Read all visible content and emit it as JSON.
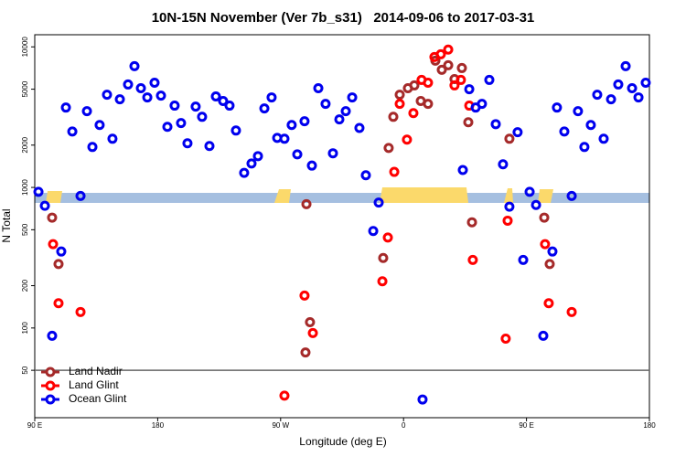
{
  "chart_data": {
    "type": "scatter",
    "title": "10N-15N November (Ver 7b_s31)   2014-09-06 to 2017-03-31",
    "x_label": "Longitude (deg E)",
    "y_label": "N Total",
    "xlim": [
      90,
      540
    ],
    "xticks": [
      {
        "value": 90,
        "label": "90 E"
      },
      180,
      {
        "value": 270,
        "label": "90 W"
      },
      {
        "value": 360,
        "label": "0"
      },
      {
        "value": 450,
        "label": "90 E"
      },
      {
        "value": 540,
        "label": "180"
      }
    ],
    "ylim": [
      23,
      12200
    ],
    "y_log": true,
    "yticks": [
      50,
      100,
      200,
      500,
      1000,
      2000,
      5000,
      10000
    ],
    "legend": "lower left",
    "series": [
      {
        "name": "Land Nadir",
        "color": "#a52a2a",
        "x": [
          102.7,
          107.4,
          288.2,
          291.5,
          288.9,
          345.1,
          349.1,
          352.5,
          357.2,
          363.2,
          367.9,
          372.6,
          377.9,
          383.3,
          388,
          392.7,
          397.3,
          402.7,
          407.4,
          410.1,
          437.5,
          463,
          467
        ],
        "values": [
          610,
          285,
          67,
          110,
          760,
          315,
          1910,
          3180,
          4570,
          5080,
          5320,
          4120,
          3930,
          7980,
          6870,
          7400,
          5900,
          7070,
          2910,
          565,
          2220,
          610,
          285
        ]
      },
      {
        "name": "Land Glint",
        "color": "#ff0000",
        "x": [
          103.4,
          107.4,
          123.5,
          272.8,
          287.5,
          293.6,
          348.5,
          344.5,
          353.2,
          357.2,
          362.5,
          367.2,
          373.2,
          377.9,
          382.6,
          387.3,
          392.7,
          397.3,
          402,
          408.1,
          410.7,
          436.2,
          434.8,
          463.6,
          466.3,
          483.1
        ],
        "values": [
          395,
          150,
          130,
          33,
          170,
          92,
          440,
          215,
          1290,
          3930,
          2190,
          3380,
          5820,
          5560,
          8470,
          8860,
          9560,
          5320,
          5820,
          3820,
          305,
          580,
          84,
          395,
          150,
          130
        ]
      },
      {
        "name": "Ocean Glint",
        "color": "#0000ee",
        "x": [
          92.7,
          97.4,
          102.7,
          109.4,
          112.8,
          117.5,
          123.5,
          128.2,
          132.2,
          137.5,
          142.9,
          146.9,
          152.3,
          158.3,
          163,
          167.7,
          172.4,
          177.7,
          182.4,
          187.1,
          192.4,
          197.1,
          201.8,
          207.8,
          212.5,
          217.9,
          222.6,
          227.9,
          232.6,
          237.3,
          243.3,
          248.7,
          253.4,
          258.1,
          263.4,
          267.5,
          272.8,
          278.1,
          282.2,
          287.5,
          292.9,
          297.6,
          302.9,
          308.3,
          313,
          317.7,
          322.4,
          327.7,
          332.4,
          337.8,
          341.8,
          373.9,
          403.4,
          408.1,
          412.8,
          417.4,
          422.8,
          427.5,
          432.8,
          437.5,
          443.5,
          447.6,
          452.3,
          457,
          462.3,
          469,
          472.3,
          477.7,
          483.1,
          487.7,
          492.4,
          497.1,
          501.8,
          506.5,
          511.9,
          517.2,
          522.6,
          527.3,
          532,
          537.3
        ],
        "values": [
          930,
          740,
          88,
          350,
          3700,
          2500,
          870,
          3490,
          1940,
          2780,
          4570,
          2220,
          4240,
          5400,
          7290,
          5080,
          4370,
          5560,
          4500,
          2700,
          3820,
          2870,
          2060,
          3760,
          3180,
          1970,
          4440,
          4120,
          3820,
          2540,
          1270,
          1480,
          1670,
          3650,
          4370,
          2250,
          2220,
          2780,
          1720,
          2960,
          1430,
          5080,
          3930,
          1750,
          3050,
          3490,
          4370,
          2650,
          1220,
          490,
          780,
          31,
          1330,
          5000,
          3700,
          3930,
          5820,
          2820,
          1460,
          730,
          2470,
          305,
          930,
          750,
          88,
          350,
          3700,
          2500,
          870,
          3490,
          1940,
          2780,
          4570,
          2220,
          4240,
          5400,
          7290,
          5080,
          4370,
          5560
        ]
      }
    ]
  }
}
